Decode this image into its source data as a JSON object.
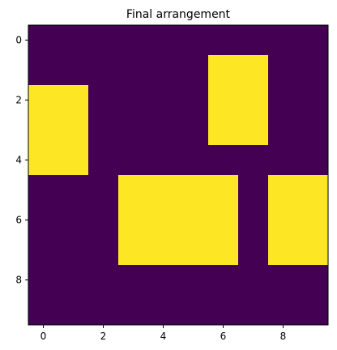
{
  "chart_data": {
    "type": "heatmap",
    "title": "Final arrangement",
    "xlabel": "",
    "ylabel": "",
    "xlim": [
      -0.5,
      9.5
    ],
    "ylim": [
      9.5,
      -0.5
    ],
    "x_ticks": [
      0,
      2,
      4,
      6,
      8
    ],
    "y_ticks": [
      0,
      2,
      4,
      6,
      8
    ],
    "grid": false,
    "colors": {
      "low": "#440154",
      "high": "#fde725"
    },
    "values": [
      [
        0,
        0,
        0,
        0,
        0,
        0,
        0,
        0,
        0,
        0
      ],
      [
        0,
        0,
        0,
        0,
        0,
        0,
        1,
        1,
        0,
        0
      ],
      [
        1,
        1,
        0,
        0,
        0,
        0,
        1,
        1,
        0,
        0
      ],
      [
        1,
        1,
        0,
        0,
        0,
        0,
        1,
        1,
        0,
        0
      ],
      [
        1,
        1,
        0,
        0,
        0,
        0,
        0,
        0,
        0,
        0
      ],
      [
        0,
        0,
        0,
        1,
        1,
        1,
        1,
        0,
        1,
        1
      ],
      [
        0,
        0,
        0,
        1,
        1,
        1,
        1,
        0,
        1,
        1
      ],
      [
        0,
        0,
        0,
        1,
        1,
        1,
        1,
        0,
        1,
        1
      ],
      [
        0,
        0,
        0,
        0,
        0,
        0,
        0,
        0,
        0,
        0
      ],
      [
        0,
        0,
        0,
        0,
        0,
        0,
        0,
        0,
        0,
        0
      ]
    ]
  }
}
